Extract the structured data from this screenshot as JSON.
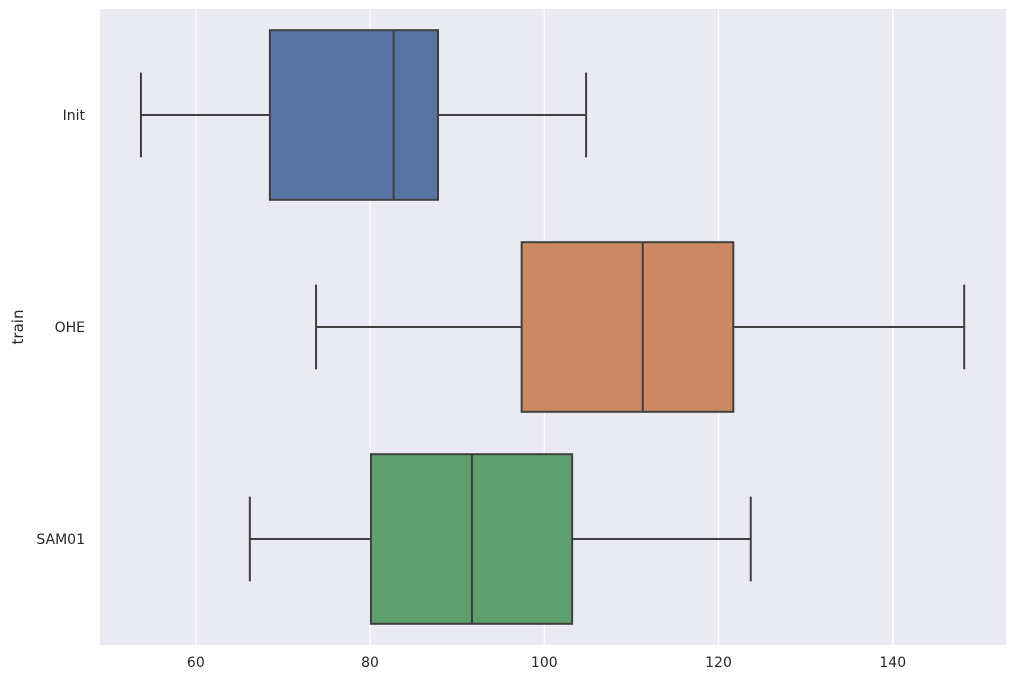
{
  "chart_data": {
    "type": "boxplot",
    "orientation": "horizontal",
    "title": "",
    "xlabel": "",
    "ylabel": "train",
    "xlim": [
      49,
      153
    ],
    "xticks": [
      60,
      80,
      100,
      120,
      140
    ],
    "grid": true,
    "legend": "none",
    "colors": {
      "background": "#eaeaf2",
      "grid": "#ffffff",
      "box_edge": "#3f3f3f"
    },
    "categories": [
      "Init",
      "OHE",
      "SAM01"
    ],
    "series": [
      {
        "category": "Init",
        "whisker_low": 53.7,
        "q1": 68.5,
        "median": 82.7,
        "q3": 87.8,
        "whisker_high": 104.8,
        "color": "#5874a5"
      },
      {
        "category": "OHE",
        "whisker_low": 73.8,
        "q1": 97.4,
        "median": 111.3,
        "q3": 121.7,
        "whisker_high": 148.2,
        "color": "#cc8963"
      },
      {
        "category": "SAM01",
        "whisker_low": 66.2,
        "q1": 80.1,
        "median": 91.7,
        "q3": 103.2,
        "whisker_high": 123.7,
        "color": "#5f9e6e"
      }
    ]
  }
}
